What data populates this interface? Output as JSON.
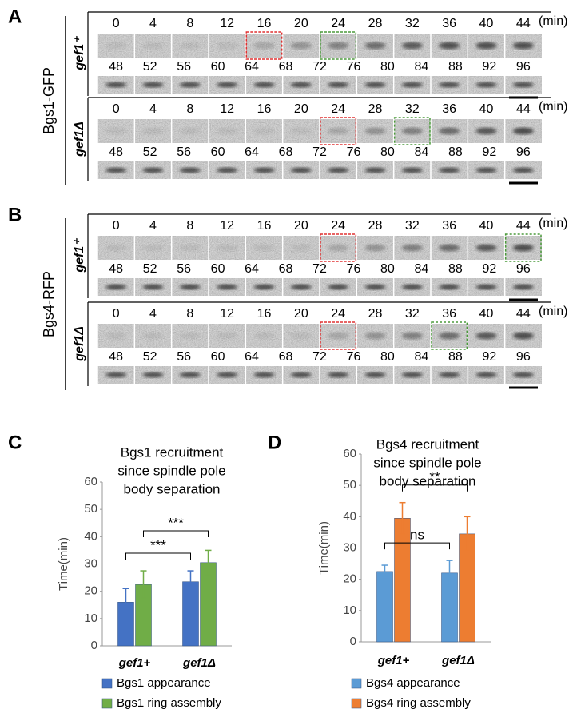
{
  "panels": [
    {
      "letter": "A",
      "protein": "Bgs1-GFP",
      "rows": [
        {
          "strain": "gef1⁺",
          "unit": "(min)",
          "times_top": [
            0,
            4,
            8,
            12,
            16,
            20,
            24,
            28,
            32,
            36,
            40,
            44
          ],
          "times_bottom": [
            48,
            52,
            56,
            60,
            64,
            68,
            72,
            76,
            80,
            84,
            88,
            92,
            96
          ]
        },
        {
          "strain": "gef1Δ",
          "unit": "(min)",
          "times_top": [
            0,
            4,
            8,
            12,
            16,
            20,
            24,
            28,
            32,
            36,
            40,
            44
          ],
          "times_bottom": [
            48,
            52,
            56,
            60,
            64,
            68,
            72,
            76,
            80,
            84,
            88,
            92,
            96
          ]
        }
      ]
    },
    {
      "letter": "B",
      "protein": "Bgs4-RFP",
      "rows": [
        {
          "strain": "gef1⁺",
          "unit": "(min)",
          "times_top": [
            0,
            4,
            8,
            12,
            16,
            20,
            24,
            28,
            32,
            36,
            40,
            44
          ],
          "times_bottom": [
            48,
            52,
            56,
            60,
            64,
            68,
            72,
            76,
            80,
            84,
            88,
            92,
            96
          ]
        },
        {
          "strain": "gef1Δ",
          "unit": "(min)",
          "times_top": [
            0,
            4,
            8,
            12,
            16,
            20,
            24,
            28,
            32,
            36,
            40,
            44
          ],
          "times_bottom": [
            48,
            52,
            56,
            60,
            64,
            68,
            72,
            76,
            80,
            84,
            88,
            92,
            96
          ]
        }
      ]
    }
  ],
  "chart_data": [
    {
      "type": "bar",
      "panel_label": "C",
      "title": [
        "Bgs1 recruitment",
        "since spindle pole",
        "body separation"
      ],
      "y_label": "Time(min)",
      "categories": [
        "gef1+",
        "gef1Δ"
      ],
      "series": [
        {
          "name": "Bgs1 appearance",
          "color": "#4472c4",
          "values": [
            16,
            23.5
          ],
          "errors": [
            5,
            4
          ]
        },
        {
          "name": "Bgs1 ring assembly",
          "color": "#70ad47",
          "values": [
            22.5,
            30.5
          ],
          "errors": [
            5,
            4.5
          ]
        }
      ],
      "ylim": [
        0,
        60
      ],
      "yticks": [
        0,
        10,
        20,
        30,
        40,
        50,
        60
      ],
      "annotations": [
        {
          "text": "***",
          "series": 0
        },
        {
          "text": "***",
          "series": 1
        }
      ]
    },
    {
      "type": "bar",
      "panel_label": "D",
      "title": [
        "Bgs4 recruitment",
        "since spindle pole",
        "body separation"
      ],
      "y_label": "Time(min)",
      "categories": [
        "gef1+",
        "gef1Δ"
      ],
      "series": [
        {
          "name": "Bgs4 appearance",
          "color": "#5b9bd5",
          "values": [
            22.5,
            22
          ],
          "errors": [
            2,
            4
          ]
        },
        {
          "name": "Bgs4 ring assembly",
          "color": "#ed7d31",
          "values": [
            39.5,
            34.5
          ],
          "errors": [
            5,
            5.5
          ]
        }
      ],
      "ylim": [
        0,
        60
      ],
      "yticks": [
        0,
        10,
        20,
        30,
        40,
        50,
        60
      ],
      "annotations": [
        {
          "text": "ns",
          "series": 0
        },
        {
          "text": "**",
          "series": 1
        }
      ]
    }
  ]
}
